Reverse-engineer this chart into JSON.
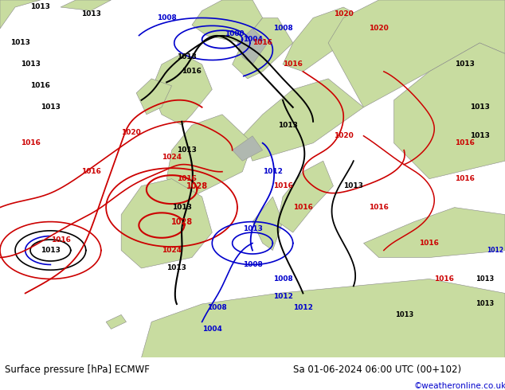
{
  "title_left": "Surface pressure [hPa] ECMWF",
  "title_right": "Sa 01-06-2024 06:00 UTC (00+102)",
  "credit": "©weatheronline.co.uk",
  "ocean_color": "#d8e8f0",
  "land_color": "#c8e6a0",
  "mountain_color": "#b8b8b8",
  "fig_width": 6.34,
  "fig_height": 4.9,
  "dpi": 100,
  "bottom_bar_color": "#e8e8e8",
  "red_color": "#cc0000",
  "blue_color": "#0000cc",
  "black_color": "#000000",
  "label_fontsize": 7,
  "footer_fontsize": 8.5,
  "credit_color": "#0000cc",
  "credit_fontsize": 7.5
}
